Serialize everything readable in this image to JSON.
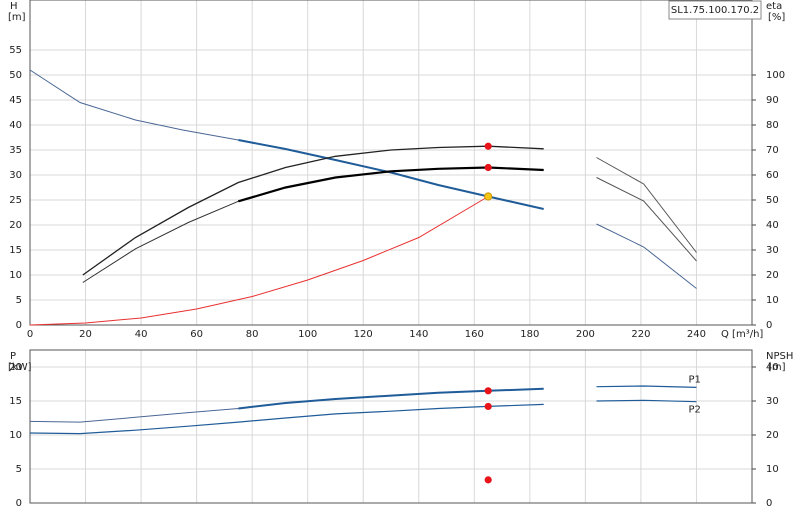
{
  "chart_data": [
    {
      "type": "line",
      "label": "SL1.75.100.170.2",
      "ylabel": "H",
      "yunit": "[m]",
      "y2label": "eta",
      "y2unit": "[%]",
      "xlabel": "Q [m³/h]",
      "xlim": [
        0,
        260
      ],
      "xticks": [
        0,
        20,
        40,
        60,
        80,
        100,
        120,
        140,
        160,
        180,
        200,
        220,
        240
      ],
      "ylim": [
        0,
        65
      ],
      "yticks": [
        0,
        5,
        10,
        15,
        20,
        25,
        30,
        35,
        40,
        45,
        50,
        55
      ],
      "y2lim": [
        0,
        130
      ],
      "y2ticks": [
        0,
        10,
        20,
        30,
        40,
        50,
        60,
        70,
        80,
        90,
        100
      ],
      "grid": true,
      "series": [
        {
          "color": "#4a6694",
          "width": 1,
          "x": [
            0,
            18,
            38,
            55,
            75
          ],
          "values": [
            51,
            44.5,
            41,
            39,
            37
          ]
        },
        {
          "color": "#1f5c99",
          "width": 2,
          "x": [
            75,
            92,
            110,
            130,
            147,
            165,
            185
          ],
          "values": [
            37,
            35.2,
            33,
            30.5,
            28,
            25.7,
            23.2
          ]
        },
        {
          "color": "#222222",
          "width": 1.3,
          "axis": "y2",
          "x": [
            19,
            38,
            57,
            75,
            92,
            110,
            130,
            147,
            165,
            185
          ],
          "values": [
            20,
            35,
            47,
            57,
            63,
            67.5,
            70,
            71,
            71.5,
            70.5
          ]
        },
        {
          "color": "#333333",
          "width": 1,
          "axis": "y2",
          "x": [
            19,
            38,
            57,
            75
          ],
          "values": [
            17,
            30.5,
            41,
            49.5
          ]
        },
        {
          "color": "#000000",
          "width": 2.2,
          "axis": "y2",
          "x": [
            75,
            92,
            110,
            130,
            147,
            165,
            185
          ],
          "values": [
            49.5,
            55,
            59,
            61.5,
            62.5,
            63,
            62
          ]
        },
        {
          "color": "#e83030",
          "width": 1,
          "x": [
            0,
            20,
            40,
            60,
            80,
            100,
            120,
            140,
            165
          ],
          "values": [
            0,
            0.4,
            1.4,
            3.2,
            5.7,
            9,
            12.9,
            17.5,
            25.7
          ]
        },
        {
          "color": "#555555",
          "width": 1,
          "axis": "y2",
          "x": [
            204,
            221,
            240
          ],
          "values": [
            67,
            56.4,
            29
          ]
        },
        {
          "color": "#555555",
          "width": 1,
          "axis": "y2",
          "x": [
            204,
            221,
            240
          ],
          "values": [
            59,
            49.6,
            25.6
          ]
        },
        {
          "color": "#4a6694",
          "width": 1,
          "x": [
            204,
            221,
            240
          ],
          "values": [
            20.2,
            15.6,
            7.3
          ]
        },
        {
          "marker": true,
          "color": "#e8141a",
          "axis": "y2",
          "x": [
            165,
            165
          ],
          "values": [
            71.5,
            63
          ]
        },
        {
          "marker": true,
          "color": "#f5c518",
          "x": [
            165
          ],
          "values": [
            25.7
          ]
        }
      ]
    },
    {
      "type": "line",
      "ylabel": "P",
      "yunit": "[kW]",
      "y2label": "NPSH",
      "y2unit": "[m]",
      "xlim": [
        0,
        260
      ],
      "xticks": [
        0,
        20,
        40,
        60,
        80,
        100,
        120,
        140,
        160,
        180,
        200,
        220,
        240
      ],
      "show_xtick_labels": false,
      "ylim": [
        0,
        22.5
      ],
      "yticks": [
        0,
        5,
        10,
        15,
        20
      ],
      "y2lim": [
        0,
        45
      ],
      "y2ticks": [
        0,
        10,
        20,
        30,
        40
      ],
      "grid": true,
      "series": [
        {
          "color": "#4a6694",
          "width": 1,
          "x": [
            0,
            18,
            38,
            57,
            75
          ],
          "values": [
            12,
            11.9,
            12.6,
            13.3,
            13.9
          ]
        },
        {
          "color": "#1f5c99",
          "width": 2,
          "x": [
            75,
            92,
            110,
            130,
            147,
            165,
            185
          ],
          "values": [
            13.9,
            14.7,
            15.3,
            15.8,
            16.2,
            16.5,
            16.8
          ]
        },
        {
          "color": "#1f5c99",
          "width": 1.2,
          "x": [
            0,
            18,
            38,
            57,
            75,
            92,
            110,
            130,
            147,
            165,
            185
          ],
          "values": [
            10.3,
            10.2,
            10.7,
            11.3,
            11.9,
            12.5,
            13.1,
            13.5,
            13.9,
            14.2,
            14.5
          ]
        },
        {
          "name": "P1",
          "label_side": "above",
          "color": "#1f5c99",
          "width": 1.2,
          "x": [
            204,
            221,
            240
          ],
          "values": [
            17.1,
            17.2,
            17.0
          ]
        },
        {
          "name": "P2",
          "label_side": "below",
          "color": "#1f5c99",
          "width": 1.2,
          "x": [
            204,
            221,
            240
          ],
          "values": [
            15.0,
            15.1,
            14.9
          ]
        },
        {
          "marker": true,
          "color": "#e8141a",
          "x": [
            165,
            165
          ],
          "values": [
            16.5,
            14.2
          ]
        },
        {
          "marker": true,
          "color": "#e8141a",
          "axis": "y2",
          "x": [
            165
          ],
          "values": [
            6.8
          ]
        }
      ]
    }
  ]
}
